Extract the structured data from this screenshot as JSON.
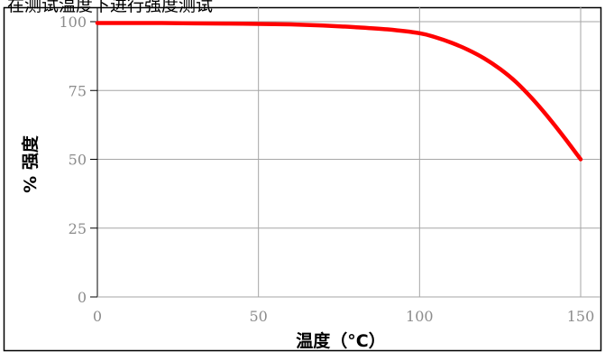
{
  "caption": "在测试温度下进行强度测试",
  "colors": {
    "line": "#ff0000",
    "grid": "#a6a6a6",
    "frame": "#000000",
    "tick_text": "#8c8c8c"
  },
  "chart_data": {
    "type": "line",
    "title": "在测试温度下进行强度测试",
    "xlabel": "温度（°C）",
    "ylabel": "% 强度",
    "xlim": [
      0,
      150
    ],
    "ylim": [
      0,
      100
    ],
    "x_ticks": [
      0,
      50,
      100,
      150
    ],
    "y_ticks": [
      0,
      25,
      50,
      75,
      100
    ],
    "grid": true,
    "series": [
      {
        "x": [
          0,
          10,
          20,
          30,
          40,
          50,
          60,
          70,
          80,
          90,
          100,
          105,
          110,
          115,
          120,
          125,
          130,
          135,
          140,
          145,
          150
        ],
        "y": [
          99.5,
          99.5,
          99.5,
          99.4,
          99.3,
          99.2,
          99.0,
          98.6,
          98.0,
          97.2,
          95.8,
          94.3,
          92.3,
          89.8,
          86.7,
          82.8,
          78.0,
          72.0,
          65.2,
          57.8,
          50.0
        ]
      }
    ]
  }
}
